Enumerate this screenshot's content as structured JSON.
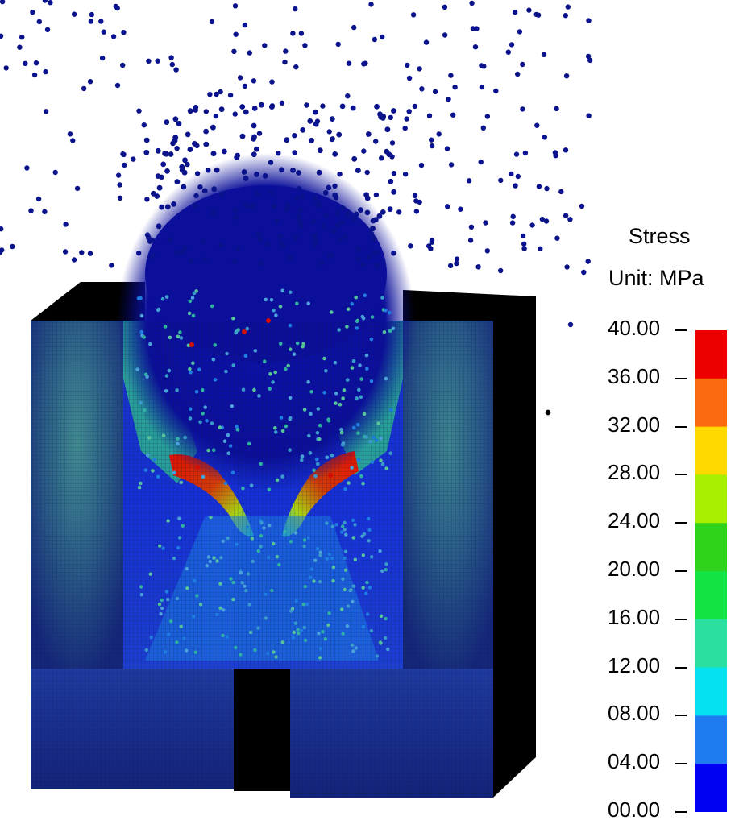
{
  "legend": {
    "title": "Stress",
    "unit": "Unit: MPa",
    "ticks": [
      "40.00",
      "36.00",
      "32.00",
      "28.00",
      "24.00",
      "20.00",
      "16.00",
      "12.00",
      "08.00",
      "04.00",
      "00.00"
    ],
    "band_colors": [
      "#ee0000",
      "#fb6a10",
      "#ffd900",
      "#a6ef00",
      "#2fd21a",
      "#13e343",
      "#2adfa0",
      "#06e1f2",
      "#1e7bf0",
      "#0000f2"
    ]
  },
  "colors": {
    "particle": "#0a128c",
    "block_base": "#16266e",
    "block_dark": "#000000",
    "high_stress": "#d10f04"
  }
}
